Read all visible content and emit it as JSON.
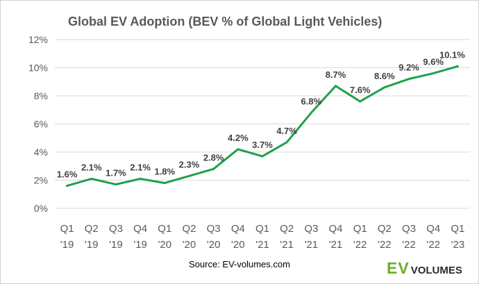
{
  "chart_data": {
    "type": "line",
    "title": "Global EV Adoption (BEV % of Global Light Vehicles)",
    "categories": [
      [
        "Q1",
        "'19"
      ],
      [
        "Q2",
        "'19"
      ],
      [
        "Q3",
        "'19"
      ],
      [
        "Q4",
        "'19"
      ],
      [
        "Q1",
        "'20"
      ],
      [
        "Q2",
        "'20"
      ],
      [
        "Q3",
        "'20"
      ],
      [
        "Q4",
        "'20"
      ],
      [
        "Q1",
        "'21"
      ],
      [
        "Q2",
        "'21"
      ],
      [
        "Q3",
        "'21"
      ],
      [
        "Q4",
        "'21"
      ],
      [
        "Q1",
        "'22"
      ],
      [
        "Q2",
        "'22"
      ],
      [
        "Q3",
        "'22"
      ],
      [
        "Q4",
        "'22"
      ],
      [
        "Q1",
        "'23"
      ]
    ],
    "series": [
      {
        "values": [
          1.6,
          2.1,
          1.7,
          2.1,
          1.8,
          2.3,
          2.8,
          4.2,
          3.7,
          4.7,
          6.8,
          8.7,
          7.6,
          8.6,
          9.2,
          9.6,
          10.1
        ],
        "labels": [
          "1.6%",
          "2.1%",
          "1.7%",
          "2.1%",
          "1.8%",
          "2.3%",
          "2.8%",
          "4.2%",
          "3.7%",
          "4.7%",
          "6.8%",
          "8.7%",
          "7.6%",
          "8.6%",
          "9.2%",
          "9.6%",
          "10.1%"
        ],
        "color": "#1fa04b"
      }
    ],
    "yticks": [
      0,
      2,
      4,
      6,
      8,
      10,
      12
    ],
    "ytick_labels": [
      "0%",
      "2%",
      "4%",
      "6%",
      "8%",
      "10%",
      "12%"
    ],
    "ylim": [
      0,
      12
    ],
    "grid": true,
    "gridline_color": "#d9d9d9",
    "legend": "none",
    "source": "Source: EV-volumes.com"
  },
  "logo": {
    "ev": "EV",
    "volumes": "VOLUMES",
    "ev_color": "#6ab023"
  }
}
